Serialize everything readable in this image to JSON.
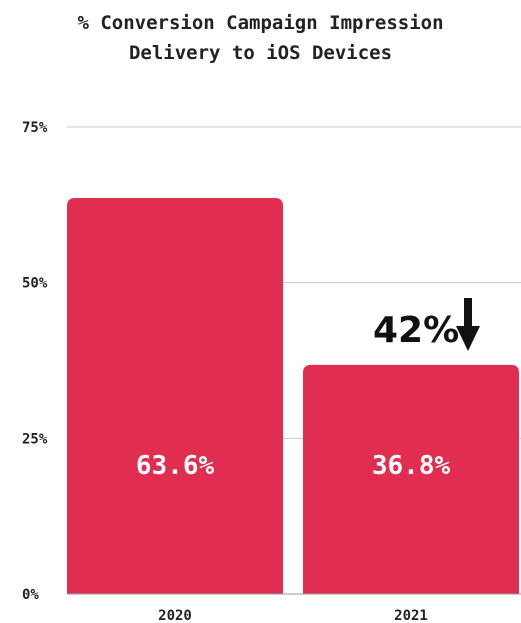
{
  "chart_data": {
    "type": "bar",
    "title_lines": [
      "% Conversion Campaign Impression",
      "Delivery to iOS Devices"
    ],
    "categories": [
      "2020",
      "2021"
    ],
    "values": [
      63.6,
      36.8
    ],
    "value_labels": [
      "63.6%",
      "36.8%"
    ],
    "ylim": [
      0,
      75
    ],
    "yticks": [
      {
        "value": 0,
        "label": "0%"
      },
      {
        "value": 25,
        "label": "25%"
      },
      {
        "value": 50,
        "label": "50%"
      },
      {
        "value": 75,
        "label": "75%"
      }
    ],
    "grid": true,
    "bar_color": "#e02d50",
    "annotation": {
      "text": "42%",
      "icon": "arrow-down-icon",
      "category_index": 1
    }
  }
}
